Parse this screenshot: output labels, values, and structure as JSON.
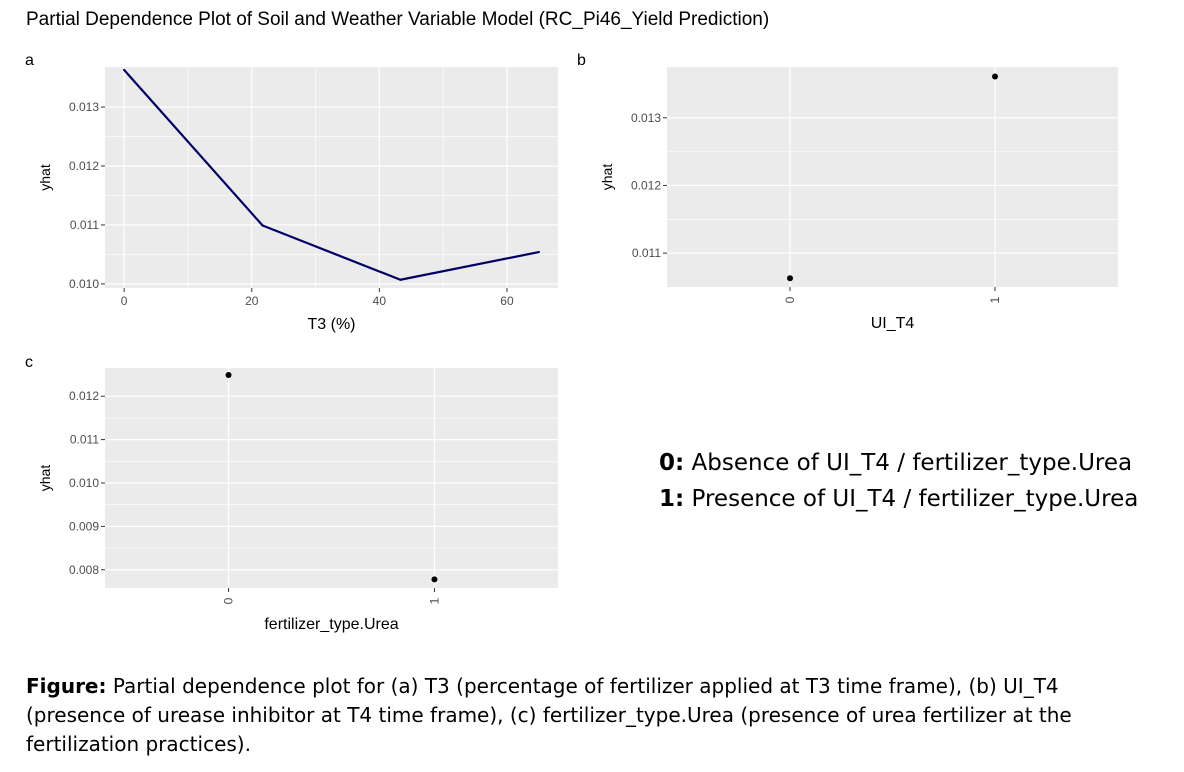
{
  "title": "Partial Dependence Plot of Soil and Weather Variable Model (RC_Pi46_Yield Prediction)",
  "legend": [
    {
      "key": "0:",
      "text": " Absence of UI_T4 / fertilizer_type.Urea"
    },
    {
      "key": "1:",
      "text": " Presence of UI_T4 / fertilizer_type.Urea"
    }
  ],
  "caption": {
    "label": "Figure:",
    "text": " Partial dependence plot for (a) T3 (percentage of fertilizer applied at T3 time frame), (b) UI_T4 (presence of urease inhibitor at T4 time frame), (c) fertilizer_type.Urea (presence of urea fertilizer at the fertilization practices)."
  },
  "colors": {
    "panel_bg": "#ebebeb",
    "grid": "#ffffff",
    "line": "#000066",
    "point": "#000000",
    "tick_text": "#4d4d4d"
  },
  "chart_data": [
    {
      "panel": "a",
      "type": "line",
      "xlabel": "T3 (%)",
      "ylabel": "yhat",
      "xlim": [
        -3,
        68
      ],
      "ylim": [
        0.00993,
        0.01368
      ],
      "xticks": [
        0,
        20,
        40,
        60
      ],
      "yticks": [
        0.01,
        0.011,
        0.012,
        0.013
      ],
      "ytick_labels": [
        "0.010",
        "0.011",
        "0.012",
        "0.013"
      ],
      "x": [
        0,
        21.7,
        43.3,
        65
      ],
      "y": [
        0.01363,
        0.01099,
        0.01007,
        0.01054
      ]
    },
    {
      "panel": "b",
      "type": "scatter",
      "xlabel": "UI_T4",
      "ylabel": "yhat",
      "categories": [
        "0",
        "1"
      ],
      "ylim": [
        0.0105,
        0.01375
      ],
      "yticks": [
        0.011,
        0.012,
        0.013
      ],
      "ytick_labels": [
        "0.011",
        "0.012",
        "0.013"
      ],
      "values": [
        0.01063,
        0.01361
      ]
    },
    {
      "panel": "c",
      "type": "scatter",
      "xlabel": "fertilizer_type.Urea",
      "ylabel": "yhat",
      "categories": [
        "0",
        "1"
      ],
      "ylim": [
        0.00758,
        0.01265
      ],
      "yticks": [
        0.008,
        0.009,
        0.01,
        0.011,
        0.012
      ],
      "ytick_labels": [
        "0.008",
        "0.009",
        "0.010",
        "0.011",
        "0.012"
      ],
      "values": [
        0.01249,
        0.00778
      ]
    }
  ]
}
